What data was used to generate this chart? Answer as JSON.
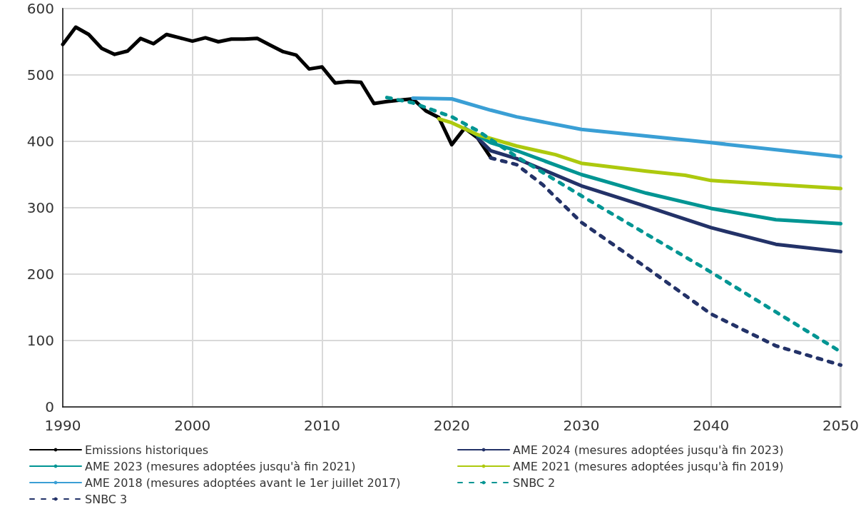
{
  "chart_data": {
    "type": "line",
    "xlim": [
      1990,
      2050
    ],
    "xticks": [
      1990,
      2000,
      2010,
      2020,
      2030,
      2040,
      2050
    ],
    "ylim": [
      0,
      600
    ],
    "yticks": [
      0,
      100,
      200,
      300,
      400,
      500,
      600
    ],
    "grid": true,
    "legend": "bottom",
    "marker": "none",
    "series": [
      {
        "name": "Emissions historiques",
        "color": "#000000",
        "line_style": "solid",
        "x": [
          1990,
          1991,
          1992,
          1993,
          1994,
          1995,
          1996,
          1997,
          1998,
          1999,
          2000,
          2001,
          2002,
          2003,
          2004,
          2005,
          2006,
          2007,
          2008,
          2009,
          2010,
          2011,
          2012,
          2013,
          2014,
          2015,
          2016,
          2017,
          2018,
          2019,
          2020,
          2021,
          2022,
          2023
        ],
        "values": [
          546,
          572,
          561,
          540,
          531,
          536,
          555,
          547,
          561,
          556,
          551,
          556,
          550,
          554,
          554,
          555,
          545,
          535,
          530,
          509,
          512,
          488,
          490,
          489,
          457,
          460,
          462,
          464,
          446,
          436,
          395,
          420,
          405,
          376
        ]
      },
      {
        "name": "AME 2024 (mesures adoptées jusqu'à fin 2023)",
        "color": "#233268",
        "line_style": "solid",
        "x": [
          2022,
          2023,
          2025,
          2030,
          2035,
          2040,
          2045,
          2050
        ],
        "values": [
          405,
          386,
          374,
          333,
          302,
          270,
          245,
          234
        ]
      },
      {
        "name": "AME 2023 (mesures adoptées jusqu'à fin 2021)",
        "color": "#009593",
        "line_style": "solid",
        "x": [
          2021,
          2023,
          2025,
          2030,
          2035,
          2040,
          2045,
          2050
        ],
        "values": [
          420,
          398,
          386,
          350,
          322,
          299,
          282,
          276
        ]
      },
      {
        "name": "AME 2021 (mesures adoptées jusqu'à fin 2019)",
        "color": "#adc90e",
        "line_style": "solid",
        "x": [
          2019,
          2020,
          2022,
          2025,
          2028,
          2030,
          2035,
          2038,
          2040,
          2045,
          2050
        ],
        "values": [
          434,
          428,
          410,
          393,
          380,
          367,
          355,
          349,
          341,
          335,
          329
        ]
      },
      {
        "name": "AME 2018 (mesures adoptées avant le 1er juillet 2017)",
        "color": "#3a9fd5",
        "line_style": "solid",
        "x": [
          2017,
          2020,
          2023,
          2025,
          2030,
          2040,
          2050
        ],
        "values": [
          465,
          464,
          447,
          437,
          418,
          398,
          377
        ]
      },
      {
        "name": "SNBC 2",
        "color": "#009593",
        "line_style": "dashed",
        "x": [
          2015,
          2017,
          2019,
          2020,
          2022,
          2025,
          2030,
          2040,
          2050
        ],
        "values": [
          466,
          458,
          444,
          437,
          416,
          377,
          318,
          203,
          83
        ]
      },
      {
        "name": "SNBC 3",
        "color": "#233268",
        "line_style": "dashed",
        "x": [
          2023,
          2025,
          2027,
          2030,
          2035,
          2040,
          2045,
          2050
        ],
        "values": [
          375,
          365,
          335,
          278,
          210,
          140,
          92,
          63
        ]
      }
    ]
  }
}
